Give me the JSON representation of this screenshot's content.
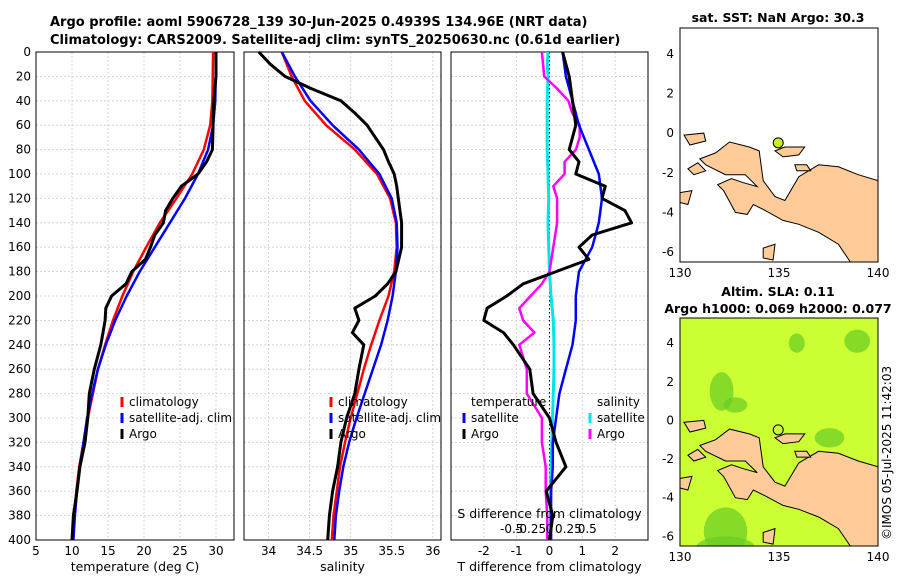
{
  "header": {
    "title_line1": "Argo profile: aoml 5906728_139 30-Jun-2025 0.4939S 134.96E (NRT data)",
    "title_line2": "Climatology: CARS2009. Satellite-adj clim: synTS_20250630.nc (0.61d earlier)"
  },
  "footer": {
    "stamp": "©IMOS 05-Jul-2025 11:42:03"
  },
  "colors": {
    "climatology": "#ff0000",
    "satellite": "#0000ff",
    "argo": "#000000",
    "salinity": "#ff00ff",
    "salinity_sat": "#00e5e5",
    "land": "#ffcc99",
    "marker": "#ccee22",
    "sla_bg": "#ccff33"
  },
  "chart_data": [
    {
      "type": "line",
      "id": "temperature_profile",
      "xlabel": "temperature (deg C)",
      "ylabel": "depth",
      "xlim": [
        5,
        32.5
      ],
      "ylim": [
        400,
        0
      ],
      "xticks": [
        5,
        10,
        15,
        20,
        25,
        30
      ],
      "yticks": [
        0,
        20,
        40,
        60,
        80,
        100,
        120,
        140,
        160,
        180,
        200,
        220,
        240,
        260,
        280,
        300,
        320,
        340,
        360,
        380,
        400
      ],
      "legend": [
        "climatology",
        "satellite-adj. clim",
        "Argo"
      ],
      "series": [
        {
          "name": "climatology",
          "depth": [
            0,
            40,
            60,
            80,
            100,
            120,
            140,
            160,
            180,
            200,
            220,
            240,
            260,
            280,
            300,
            320,
            340,
            360,
            380,
            400
          ],
          "values": [
            29.6,
            29.5,
            29.2,
            28.3,
            26.7,
            24.5,
            22.2,
            20.3,
            18.5,
            17.0,
            15.7,
            14.6,
            13.6,
            12.9,
            12.2,
            11.6,
            11.0,
            10.6,
            10.3,
            10.1
          ]
        },
        {
          "name": "satellite-adj. clim",
          "depth": [
            0,
            40,
            60,
            80,
            100,
            120,
            140,
            160,
            180,
            200,
            220,
            240,
            260,
            280,
            300,
            320,
            340,
            360,
            380,
            400
          ],
          "values": [
            30.0,
            29.9,
            29.6,
            28.9,
            27.5,
            25.7,
            23.6,
            21.5,
            19.4,
            17.6,
            16.0,
            14.7,
            13.6,
            12.8,
            12.1,
            11.6,
            11.1,
            10.7,
            10.4,
            10.2
          ]
        },
        {
          "name": "Argo",
          "depth": [
            0,
            20,
            40,
            60,
            80,
            90,
            100,
            110,
            120,
            130,
            140,
            150,
            160,
            170,
            180,
            190,
            200,
            210,
            220,
            230,
            240,
            260,
            280,
            300,
            320,
            340,
            360,
            380,
            400
          ],
          "values": [
            30.0,
            30.0,
            29.7,
            29.6,
            29.5,
            28.7,
            27.5,
            25.2,
            24.0,
            23.0,
            22.7,
            21.5,
            20.9,
            20.2,
            18.3,
            17.5,
            15.5,
            14.7,
            14.6,
            14.3,
            14.0,
            13.1,
            12.4,
            12.2,
            11.8,
            11.1,
            10.7,
            10.2,
            10.0
          ]
        }
      ]
    },
    {
      "type": "line",
      "id": "salinity_profile",
      "xlabel": "salinity",
      "xlim": [
        33.7,
        36.1
      ],
      "ylim": [
        400,
        0
      ],
      "xticks": [
        34,
        34.5,
        35,
        35.5,
        36
      ],
      "legend": [
        "climatology",
        "satellite-adj. clim",
        "Argo"
      ],
      "series": [
        {
          "name": "climatology",
          "depth": [
            0,
            20,
            40,
            60,
            80,
            100,
            120,
            140,
            160,
            180,
            200,
            220,
            240,
            260,
            280,
            300,
            320,
            340,
            360,
            380,
            400
          ],
          "values": [
            34.16,
            34.28,
            34.44,
            34.7,
            35.05,
            35.32,
            35.48,
            35.55,
            35.56,
            35.53,
            35.46,
            35.35,
            35.25,
            35.16,
            35.08,
            35.0,
            34.93,
            34.87,
            34.83,
            34.79,
            34.77
          ]
        },
        {
          "name": "satellite-adj. clim",
          "depth": [
            0,
            20,
            40,
            60,
            80,
            100,
            120,
            140,
            160,
            180,
            200,
            220,
            240,
            260,
            280,
            300,
            320,
            340,
            360,
            380,
            400
          ],
          "values": [
            34.16,
            34.32,
            34.51,
            34.78,
            35.1,
            35.35,
            35.5,
            35.56,
            35.57,
            35.55,
            35.51,
            35.45,
            35.37,
            35.27,
            35.17,
            35.07,
            34.98,
            34.91,
            34.86,
            34.82,
            34.8
          ]
        },
        {
          "name": "Argo",
          "depth": [
            0,
            10,
            20,
            30,
            40,
            50,
            60,
            70,
            80,
            90,
            100,
            110,
            120,
            140,
            160,
            180,
            190,
            200,
            210,
            220,
            230,
            240,
            260,
            280,
            300,
            320,
            340,
            360,
            380,
            400
          ],
          "values": [
            33.88,
            34.02,
            34.2,
            34.52,
            34.88,
            35.05,
            35.2,
            35.3,
            35.4,
            35.46,
            35.53,
            35.56,
            35.58,
            35.62,
            35.62,
            35.55,
            35.45,
            35.3,
            35.05,
            35.1,
            35.02,
            35.16,
            35.1,
            35.05,
            34.95,
            34.88,
            34.84,
            34.78,
            34.74,
            34.72
          ]
        }
      ]
    },
    {
      "type": "line",
      "id": "difference_profile",
      "xlabel": "T difference from climatology",
      "xlabel_top": "S difference from climatology",
      "xlim": [
        -3,
        3
      ],
      "ylim": [
        400,
        0
      ],
      "xticks": [
        -2,
        -1,
        0,
        1,
        2
      ],
      "s_xticks": [
        "-0.5",
        "-0.25",
        "0",
        "0.25",
        "0.5"
      ],
      "s_xtick_values": [
        -0.5,
        -0.25,
        0,
        0.25,
        0.5
      ],
      "legend_left": [
        "temperature",
        "satellite",
        "Argo"
      ],
      "legend_right": [
        "salinity",
        "satellite",
        "Argo"
      ],
      "series": [
        {
          "name": "T satellite",
          "depth": [
            0,
            20,
            40,
            60,
            80,
            100,
            120,
            140,
            160,
            180,
            200,
            220,
            240,
            260,
            280,
            300,
            320,
            340,
            360,
            380,
            400
          ],
          "values": [
            0.4,
            0.5,
            0.7,
            0.9,
            1.2,
            1.5,
            1.6,
            1.5,
            1.3,
            0.9,
            0.8,
            0.8,
            0.7,
            0.5,
            0.3,
            0.2,
            0.1,
            0.1,
            0.05,
            0.05,
            0.05
          ]
        },
        {
          "name": "T Argo",
          "depth": [
            0,
            20,
            40,
            60,
            80,
            90,
            100,
            110,
            120,
            130,
            140,
            150,
            160,
            170,
            180,
            190,
            200,
            210,
            220,
            230,
            240,
            260,
            280,
            300,
            320,
            340,
            360,
            380,
            400
          ],
          "values": [
            0.4,
            0.6,
            0.7,
            0.8,
            0.6,
            0.9,
            0.8,
            1.7,
            1.6,
            2.3,
            2.5,
            1.3,
            0.9,
            1.2,
            0.2,
            -0.8,
            -1.3,
            -1.9,
            -2.0,
            -1.4,
            -1.1,
            -0.6,
            -0.5,
            0.0,
            0.2,
            0.5,
            -0.1,
            0.1,
            0.0
          ]
        },
        {
          "name": "S satellite",
          "depth": [
            0,
            10,
            20,
            40,
            60,
            80,
            100,
            120,
            140,
            160,
            180,
            200,
            220,
            240,
            260,
            280,
            300,
            320,
            340,
            360,
            380,
            400
          ],
          "values": [
            -0.02,
            -0.03,
            -0.02,
            -0.03,
            -0.03,
            -0.03,
            -0.02,
            -0.01,
            -0.02,
            -0.01,
            0.0,
            0.02,
            0.05,
            0.06,
            0.06,
            0.05,
            0.04,
            0.03,
            0.02,
            0.01,
            0.01,
            0.01
          ]
        },
        {
          "name": "S Argo",
          "depth": [
            0,
            20,
            30,
            40,
            50,
            60,
            70,
            80,
            90,
            100,
            110,
            120,
            140,
            160,
            180,
            190,
            200,
            210,
            220,
            230,
            240,
            260,
            280,
            300,
            320,
            340,
            360,
            380,
            400
          ],
          "values": [
            -0.1,
            -0.07,
            0.1,
            0.25,
            0.3,
            0.4,
            0.4,
            0.35,
            0.2,
            0.2,
            0.05,
            0.1,
            0.1,
            0.05,
            0.0,
            -0.1,
            -0.25,
            -0.4,
            -0.35,
            -0.2,
            -0.4,
            -0.3,
            -0.3,
            -0.1,
            -0.1,
            -0.05,
            -0.05,
            -0.03,
            -0.03
          ]
        }
      ]
    },
    {
      "type": "map",
      "id": "sst_map",
      "title": "sat. SST: NaN Argo: 30.3",
      "xlim": [
        130,
        140
      ],
      "ylim": [
        -6.5,
        5.3
      ],
      "xticks": [
        130,
        135,
        140
      ],
      "yticks": [
        -6,
        -4,
        -2,
        0,
        2,
        4
      ],
      "marker": {
        "lon": 134.96,
        "lat": -0.49
      }
    },
    {
      "type": "map",
      "id": "sla_map",
      "title_line1": "Altim. SLA: 0.11",
      "title_line2": "Argo h1000: 0.069 h2000: 0.077",
      "xlim": [
        130,
        140
      ],
      "ylim": [
        -6.5,
        5.3
      ],
      "xticks": [
        130,
        135,
        140
      ],
      "yticks": [
        -6,
        -4,
        -2,
        0,
        2,
        4
      ],
      "marker": {
        "lon": 134.96,
        "lat": -0.49
      }
    }
  ]
}
